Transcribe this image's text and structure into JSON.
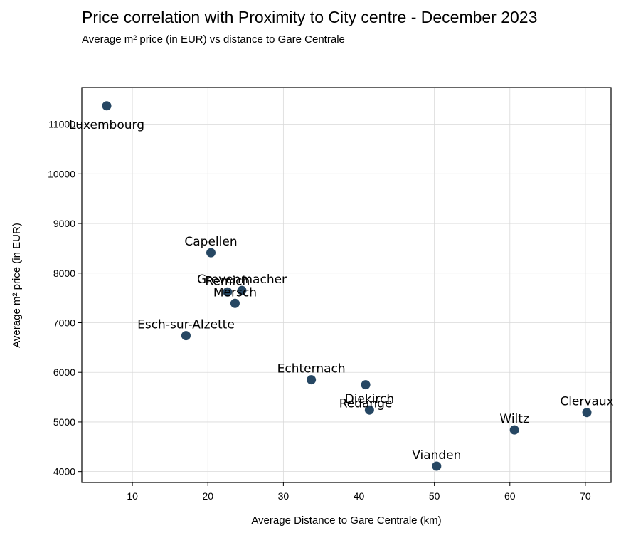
{
  "chart_data": {
    "type": "scatter",
    "title": "Price correlation with Proximity to City centre - December 2023",
    "subtitle": "Average m² price (in EUR) vs distance to Gare Centrale",
    "xlabel": "Average Distance to Gare Centrale (km)",
    "ylabel": "Average m² price (in EUR)",
    "xlim": [
      3.3,
      73.4
    ],
    "ylim": [
      3780,
      11740
    ],
    "xticks": [
      10,
      20,
      30,
      40,
      50,
      60,
      70
    ],
    "yticks": [
      4000,
      5000,
      6000,
      7000,
      8000,
      9000,
      10000,
      11000
    ],
    "grid": true,
    "marker_color": "#264763",
    "points": [
      {
        "label": "Luxembourg",
        "x": 6.6,
        "y": 11370
      },
      {
        "label": "Capellen",
        "x": 20.4,
        "y": 8410
      },
      {
        "label": "Grevenmacher",
        "x": 24.5,
        "y": 7650
      },
      {
        "label": "Remich",
        "x": 22.6,
        "y": 7620
      },
      {
        "label": "Mersch",
        "x": 23.6,
        "y": 7390
      },
      {
        "label": "Esch-sur-Alzette",
        "x": 17.1,
        "y": 6740
      },
      {
        "label": "Echternach",
        "x": 33.7,
        "y": 5850
      },
      {
        "label": "Redange",
        "x": 40.9,
        "y": 5750
      },
      {
        "label": "Diekirch",
        "x": 41.4,
        "y": 5240
      },
      {
        "label": "Vianden",
        "x": 50.3,
        "y": 4110
      },
      {
        "label": "Wiltz",
        "x": 60.6,
        "y": 4840
      },
      {
        "label": "Clervaux",
        "x": 70.2,
        "y": 5190
      }
    ]
  }
}
